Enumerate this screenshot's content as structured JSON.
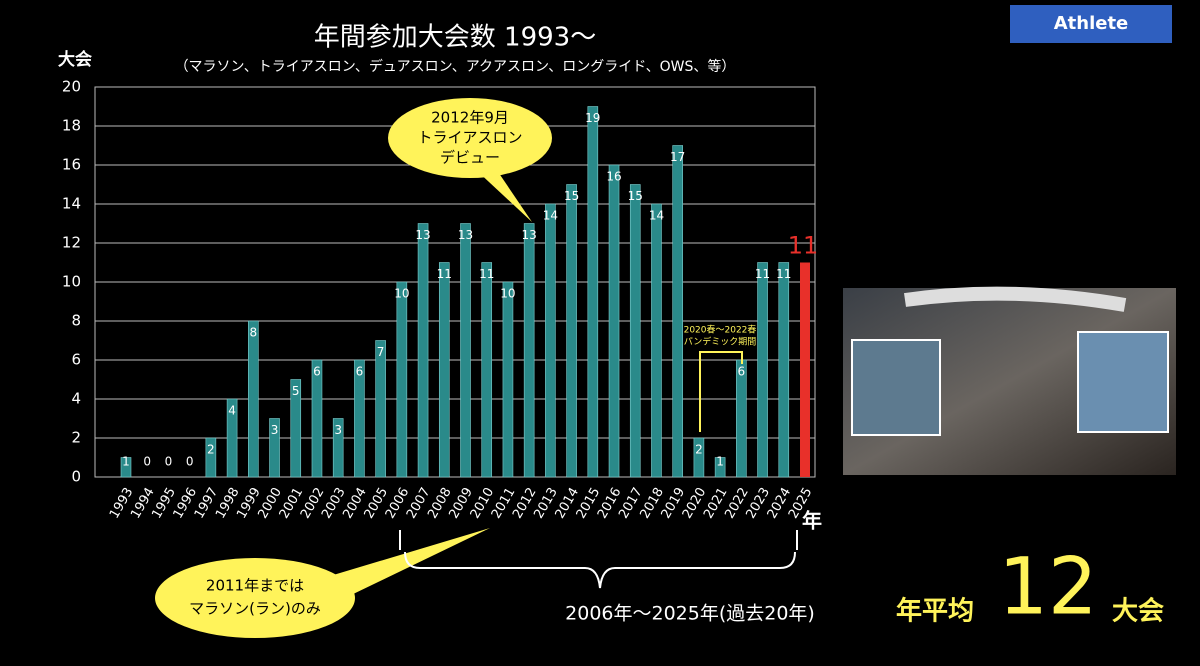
{
  "chart_data": {
    "type": "bar",
    "title": "年間参加大会数 1993〜",
    "subtitle": "（マラソン、トライアスロン、デュアスロン、アクアスロン、ロングライド、OWS、等）",
    "y_label": "大会",
    "x_label": "年",
    "categories": [
      "1993",
      "1994",
      "1995",
      "1996",
      "1997",
      "1998",
      "1999",
      "2000",
      "2001",
      "2002",
      "2003",
      "2004",
      "2005",
      "2006",
      "2007",
      "2008",
      "2009",
      "2010",
      "2011",
      "2012",
      "2013",
      "2014",
      "2015",
      "2016",
      "2017",
      "2018",
      "2019",
      "2020",
      "2021",
      "2022",
      "2023",
      "2024",
      "2025"
    ],
    "values": [
      1,
      0,
      0,
      0,
      2,
      4,
      8,
      3,
      5,
      6,
      3,
      6,
      7,
      10,
      13,
      11,
      13,
      11,
      10,
      13,
      14,
      15,
      19,
      16,
      15,
      14,
      17,
      2,
      1,
      6,
      11,
      11,
      11
    ],
    "colors": [
      "#2a8a8a",
      "#2a8a8a",
      "#2a8a8a",
      "#2a8a8a",
      "#2a8a8a",
      "#2a8a8a",
      "#2a8a8a",
      "#2a8a8a",
      "#2a8a8a",
      "#2a8a8a",
      "#2a8a8a",
      "#2a8a8a",
      "#2a8a8a",
      "#2a8a8a",
      "#2a8a8a",
      "#2a8a8a",
      "#2a8a8a",
      "#2a8a8a",
      "#2a8a8a",
      "#2a8a8a",
      "#2a8a8a",
      "#2a8a8a",
      "#2a8a8a",
      "#2a8a8a",
      "#2a8a8a",
      "#2a8a8a",
      "#2a8a8a",
      "#2a8a8a",
      "#2a8a8a",
      "#2a8a8a",
      "#2a8a8a",
      "#2a8a8a",
      "#e8302a"
    ],
    "ylim": [
      0,
      20
    ],
    "yticks": [
      0,
      2,
      4,
      6,
      8,
      10,
      12,
      14,
      16,
      18,
      20
    ],
    "grid": true,
    "annotations": {
      "debut": [
        "2012年9月",
        "トライアスロン",
        "デビュー"
      ],
      "marathon": [
        "2011年までは",
        "マラソン(ラン)のみ"
      ],
      "pandemic": [
        "2020春〜2022春",
        "パンデミック期間"
      ],
      "period": "2006年〜2025年(過去20年)"
    }
  },
  "badge": "Athlete",
  "average": {
    "label": "年平均",
    "value": "12",
    "unit": "大会"
  }
}
